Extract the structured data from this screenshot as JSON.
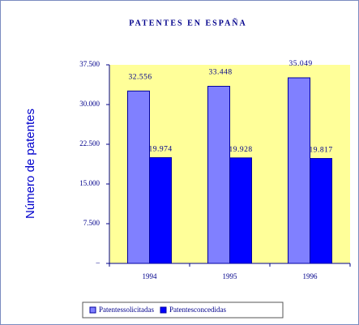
{
  "chart_data": {
    "type": "bar",
    "title": "PATENTES EN ESPAÑA",
    "y_label": "Número de patentes",
    "categories": [
      "1994",
      "1995",
      "1996"
    ],
    "series": [
      {
        "name": "Patentessolicitadas",
        "color": "#8080ff",
        "values": [
          32556,
          33448,
          35049
        ],
        "value_labels": [
          "32.556",
          "33.448",
          "35.049"
        ]
      },
      {
        "name": "Patentesconcedidas",
        "color": "#0000ff",
        "values": [
          19974,
          19928,
          19817
        ],
        "value_labels": [
          "19.974",
          "19.928",
          "19.817"
        ]
      }
    ],
    "ylim": [
      0,
      37500
    ],
    "yticks": [
      {
        "value": 0,
        "label": "–"
      },
      {
        "value": 7500,
        "label": "7.500"
      },
      {
        "value": 15000,
        "label": "15.000"
      },
      {
        "value": 22500,
        "label": "22.500"
      },
      {
        "value": 30000,
        "label": "30.000"
      },
      {
        "value": 37500,
        "label": "37.500"
      }
    ],
    "legend": "bottom",
    "plot_background": "#ffff99"
  }
}
